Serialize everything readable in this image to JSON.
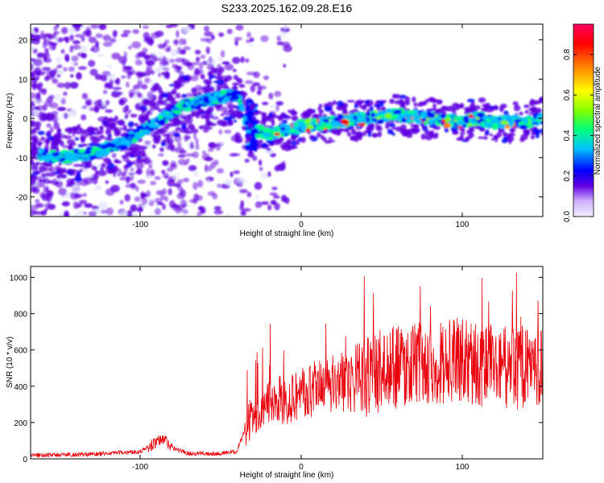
{
  "title": "S233.2025.162.09.28.E16",
  "chart_data": [
    {
      "type": "heatmap",
      "xlabel": "Height of straight line (km)",
      "ylabel": "Frequency (Hz)",
      "xlim": [
        -168,
        150
      ],
      "ylim": [
        -25,
        24
      ],
      "x_ticks": [
        -100,
        0,
        100
      ],
      "y_ticks": [
        -20,
        -10,
        0,
        10,
        20
      ],
      "colorbar": {
        "label": "Normalized spectral amplitude",
        "range": [
          0.0,
          0.95
        ],
        "ticks": [
          0.0,
          0.2,
          0.4,
          0.6,
          0.8
        ],
        "colormap": [
          "#e0e0ff",
          "#6000e0",
          "#0000ff",
          "#00c0ff",
          "#00ff80",
          "#80ff00",
          "#ffff00",
          "#ff8000",
          "#ff0000",
          "#ff0060"
        ]
      },
      "ridge": {
        "x": [
          -168,
          -150,
          -130,
          -110,
          -90,
          -75,
          -55,
          -40,
          -35,
          -30,
          -20,
          -10,
          0,
          20,
          40,
          60,
          80,
          100,
          110,
          120,
          140,
          150
        ],
        "y": [
          -9,
          -10,
          -9,
          -6,
          -1,
          3,
          5,
          6,
          0,
          -3,
          -4,
          -3,
          -2,
          -1,
          0,
          1,
          0,
          -1,
          0,
          -1,
          -1,
          0
        ]
      }
    },
    {
      "type": "line",
      "xlabel": "Height of straight line (km)",
      "ylabel": "SNR (10 * v/v)",
      "xlim": [
        -168,
        150
      ],
      "ylim": [
        0,
        1060
      ],
      "x_ticks": [
        -100,
        0,
        100
      ],
      "y_ticks": [
        0,
        200,
        400,
        600,
        800,
        1000
      ],
      "series_color": "#e8000b",
      "trend": {
        "x": [
          -168,
          -130,
          -100,
          -90,
          -85,
          -80,
          -70,
          -50,
          -40,
          -35,
          -30,
          -20,
          -10,
          0,
          10,
          20,
          40,
          60,
          80,
          100,
          110,
          130,
          150
        ],
        "y": [
          20,
          25,
          40,
          90,
          110,
          60,
          30,
          30,
          40,
          160,
          240,
          300,
          330,
          360,
          380,
          410,
          460,
          510,
          530,
          540,
          520,
          500,
          510
        ]
      }
    }
  ]
}
